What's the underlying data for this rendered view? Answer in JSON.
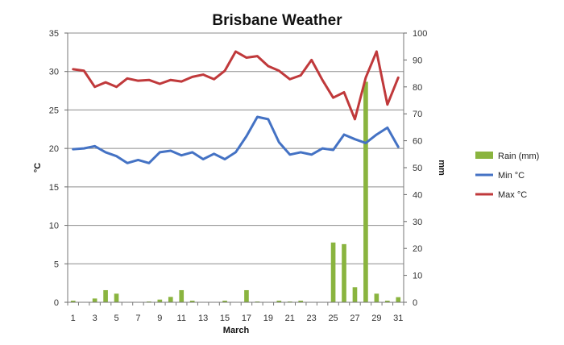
{
  "chart_data": {
    "type": "bar+line",
    "title": "Brisbane Weather",
    "xlabel": "March",
    "ylabel_left": "°C",
    "ylabel_right": "mm",
    "ylim_left": [
      0,
      35
    ],
    "ylim_right": [
      0,
      100
    ],
    "yticks_left": [
      "0",
      "5",
      "10",
      "15",
      "20",
      "25",
      "30",
      "35"
    ],
    "yticks_right": [
      "0",
      "10",
      "20",
      "30",
      "40",
      "50",
      "60",
      "70",
      "80",
      "90",
      "100"
    ],
    "xtick_labels": [
      "1",
      "3",
      "5",
      "7",
      "9",
      "11",
      "13",
      "15",
      "17",
      "19",
      "21",
      "23",
      "25",
      "27",
      "29",
      "31"
    ],
    "grid": true,
    "legend_position": "right",
    "days": [
      1,
      2,
      3,
      4,
      5,
      6,
      7,
      8,
      9,
      10,
      11,
      12,
      13,
      14,
      15,
      16,
      17,
      18,
      19,
      20,
      21,
      22,
      23,
      24,
      25,
      26,
      27,
      28,
      29,
      30,
      31
    ],
    "series": [
      {
        "name": "Rain (mm)",
        "axis": "right",
        "kind": "bar",
        "color": "#8AB43F",
        "values": [
          0.6,
          0,
          1.4,
          4.5,
          3.2,
          0,
          0,
          0.3,
          1.0,
          2.0,
          4.5,
          0.6,
          0,
          0,
          0.6,
          0,
          4.5,
          0.3,
          0,
          0.6,
          0.3,
          0.6,
          0,
          0,
          22.2,
          21.6,
          5.6,
          81.9,
          3.2,
          0.6,
          1.9
        ]
      },
      {
        "name": "Min °C",
        "axis": "left",
        "kind": "line",
        "color": "#4472C4",
        "values": [
          19.9,
          20.0,
          20.3,
          19.5,
          19.0,
          18.1,
          18.5,
          18.1,
          19.5,
          19.7,
          19.1,
          19.5,
          18.6,
          19.3,
          18.6,
          19.5,
          21.6,
          24.1,
          23.8,
          20.8,
          19.2,
          19.5,
          19.2,
          20.0,
          19.8,
          21.8,
          21.2,
          20.7,
          21.8,
          22.7,
          20.2
        ]
      },
      {
        "name": "Max °C",
        "axis": "left",
        "kind": "line",
        "color": "#C0393B",
        "values": [
          30.3,
          30.1,
          28.0,
          28.6,
          28.0,
          29.1,
          28.8,
          28.9,
          28.4,
          28.9,
          28.7,
          29.3,
          29.6,
          29.0,
          30.1,
          32.6,
          31.8,
          32.0,
          30.7,
          30.1,
          29.0,
          29.5,
          31.5,
          28.9,
          26.6,
          27.3,
          23.8,
          29.2,
          32.6,
          25.7,
          29.2
        ]
      }
    ]
  }
}
